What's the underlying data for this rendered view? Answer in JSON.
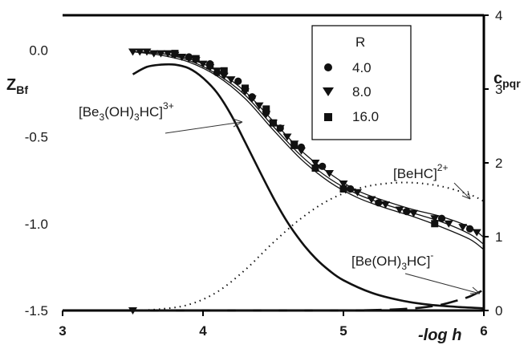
{
  "chart_data": {
    "type": "line",
    "xlabel": "-log h",
    "ylabel_left": "Z",
    "ylabel_left_sub": "Bf",
    "ylabel_right": "c",
    "ylabel_right_sub": "pqr",
    "xlim": [
      3,
      6
    ],
    "ylim_left": [
      -1.5,
      0.2
    ],
    "ylim_right": [
      0,
      4
    ],
    "x_ticks": [
      3,
      4,
      5,
      6
    ],
    "y_left_ticks": [
      {
        "value": 0.0,
        "label": "0.0"
      },
      {
        "value": -0.5,
        "label": "-0.5"
      },
      {
        "value": -1.0,
        "label": "-1.0"
      },
      {
        "value": -1.5,
        "label": "-1.5"
      }
    ],
    "y_right_ticks": [
      0,
      1,
      2,
      3,
      4
    ],
    "legend": {
      "title": "R",
      "placement": "top-right",
      "entries": [
        {
          "label": "4.0",
          "marker": "circle"
        },
        {
          "label": "8.0",
          "marker": "triangle-down"
        },
        {
          "label": "16.0",
          "marker": "square"
        }
      ]
    },
    "measured_series": [
      {
        "name": "4.0",
        "marker": "circle",
        "x": [
          3.9,
          4.05,
          4.1,
          4.25,
          4.35,
          4.45,
          4.55,
          4.7,
          4.85,
          5.05,
          5.25,
          5.45,
          5.7,
          5.9
        ],
        "y": [
          -0.04,
          -0.08,
          -0.13,
          -0.18,
          -0.27,
          -0.36,
          -0.45,
          -0.56,
          -0.67,
          -0.8,
          -0.88,
          -0.93,
          -0.97,
          -1.03
        ]
      },
      {
        "name": "8.0",
        "marker": "triangle-down",
        "x": [
          3.5,
          3.55,
          3.6,
          3.65,
          3.7,
          3.75,
          3.8,
          3.85,
          3.9,
          3.95,
          4.0,
          4.05,
          4.1,
          4.15,
          4.2,
          4.3,
          4.35,
          4.4,
          4.45,
          4.5,
          4.55,
          4.6,
          4.65,
          4.7,
          4.8,
          4.9,
          5.0,
          5.1,
          5.2,
          5.3,
          5.4,
          5.5,
          5.65,
          5.75,
          5.85,
          5.95
        ],
        "y": [
          -0.01,
          -0.01,
          -0.01,
          -0.02,
          -0.02,
          -0.02,
          -0.03,
          -0.04,
          -0.05,
          -0.06,
          -0.08,
          -0.1,
          -0.12,
          -0.15,
          -0.17,
          -0.24,
          -0.28,
          -0.32,
          -0.37,
          -0.42,
          -0.45,
          -0.5,
          -0.54,
          -0.58,
          -0.65,
          -0.71,
          -0.77,
          -0.82,
          -0.86,
          -0.89,
          -0.92,
          -0.94,
          -0.97,
          -1.0,
          -1.02,
          -1.05
        ]
      },
      {
        "name": "16.0",
        "marker": "square",
        "x": [
          3.8,
          3.95,
          4.05,
          4.15,
          4.3,
          4.45,
          4.5,
          4.65,
          4.8,
          5.0,
          5.65
        ],
        "y": [
          -0.02,
          -0.05,
          -0.09,
          -0.12,
          -0.22,
          -0.34,
          -0.42,
          -0.55,
          -0.68,
          -0.8,
          -1.0
        ]
      }
    ],
    "fit_curves_Z": [
      {
        "x": [
          3.5,
          3.7,
          3.9,
          4.1,
          4.3,
          4.5,
          4.7,
          4.9,
          5.1,
          5.3,
          5.5,
          5.7,
          5.9,
          6.0
        ],
        "y": [
          -0.01,
          -0.02,
          -0.05,
          -0.12,
          -0.24,
          -0.41,
          -0.58,
          -0.71,
          -0.81,
          -0.87,
          -0.92,
          -0.96,
          -1.02,
          -1.08
        ]
      },
      {
        "x": [
          3.5,
          3.7,
          3.9,
          4.1,
          4.3,
          4.5,
          4.7,
          4.9,
          5.1,
          5.3,
          5.5,
          5.7,
          5.9,
          6.0
        ],
        "y": [
          -0.01,
          -0.02,
          -0.06,
          -0.14,
          -0.26,
          -0.44,
          -0.61,
          -0.74,
          -0.83,
          -0.89,
          -0.94,
          -0.99,
          -1.06,
          -1.12
        ]
      },
      {
        "x": [
          3.5,
          3.7,
          3.9,
          4.1,
          4.3,
          4.5,
          4.7,
          4.9,
          5.1,
          5.3,
          5.5,
          5.7,
          5.9,
          6.0
        ],
        "y": [
          -0.01,
          -0.03,
          -0.07,
          -0.15,
          -0.28,
          -0.46,
          -0.63,
          -0.76,
          -0.85,
          -0.91,
          -0.96,
          -1.02,
          -1.09,
          -1.15
        ]
      }
    ],
    "species_curves_c": [
      {
        "name": "[Be3(OH)3HC]3+",
        "style": "solid",
        "x": [
          3.5,
          3.6,
          3.7,
          3.8,
          3.9,
          4.0,
          4.1,
          4.2,
          4.3,
          4.4,
          4.5,
          4.6,
          4.7,
          4.8,
          4.9,
          5.0,
          5.2,
          5.4,
          5.6,
          5.8,
          6.0
        ],
        "y": [
          3.2,
          3.3,
          3.33,
          3.33,
          3.28,
          3.15,
          2.95,
          2.65,
          2.28,
          1.9,
          1.53,
          1.2,
          0.93,
          0.71,
          0.54,
          0.41,
          0.24,
          0.14,
          0.08,
          0.05,
          0.03
        ]
      },
      {
        "name": "[BeHC]2+",
        "style": "dotted",
        "x": [
          3.5,
          3.7,
          3.9,
          4.1,
          4.3,
          4.5,
          4.7,
          4.9,
          5.1,
          5.3,
          5.5,
          5.7,
          5.9,
          6.0
        ],
        "y": [
          0.0,
          0.02,
          0.08,
          0.25,
          0.55,
          0.92,
          1.25,
          1.5,
          1.65,
          1.72,
          1.73,
          1.68,
          1.57,
          1.48
        ]
      },
      {
        "name": "[Be(OH)3HC]-",
        "style": "dashed",
        "x": [
          3.5,
          4.5,
          5.0,
          5.3,
          5.5,
          5.6,
          5.7,
          5.8,
          5.9,
          6.0
        ],
        "y": [
          0.0,
          0.0,
          0.0,
          0.01,
          0.03,
          0.05,
          0.08,
          0.13,
          0.19,
          0.28
        ]
      }
    ],
    "annotations": [
      {
        "text": "[Be",
        "sub": "3",
        "mid": "(OH)",
        "sub2": "3",
        "tail": "HC]",
        "sup": "3+"
      },
      {
        "text": "[BeHC]",
        "sup": "2+"
      },
      {
        "text": "[Be(OH)",
        "sub": "3",
        "tail": "HC]",
        "sup": "-"
      }
    ]
  }
}
